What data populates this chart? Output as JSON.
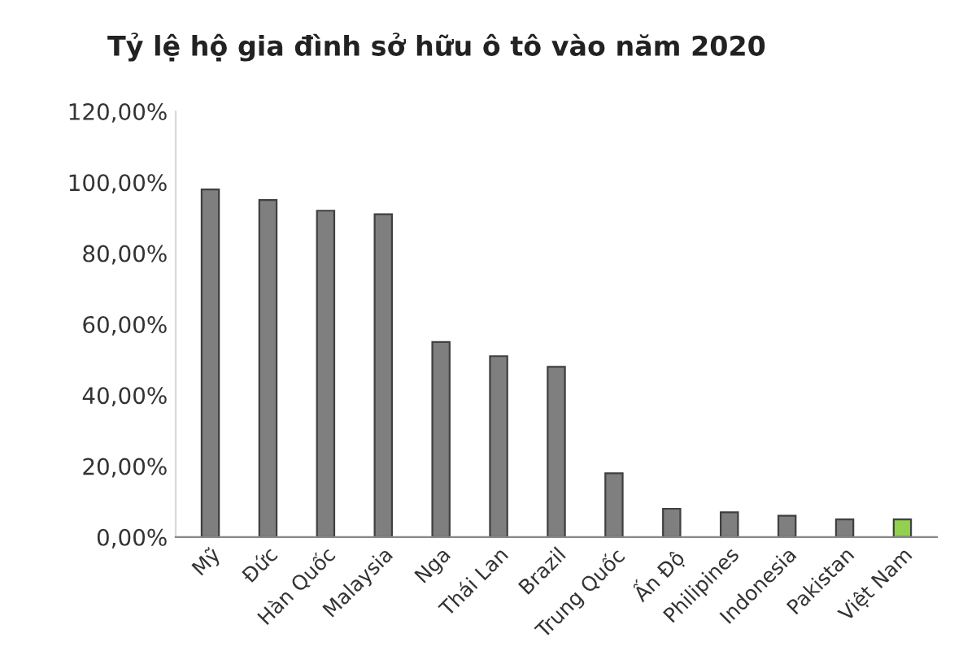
{
  "chart_data": {
    "type": "bar",
    "title": "Tỷ lệ hộ gia đình sở hữu ô tô vào năm 2020",
    "categories": [
      "Mỹ",
      "Đức",
      "Hàn Quốc",
      "Malaysia",
      "Nga",
      "Thái Lan",
      "Brazil",
      "Trung Quốc",
      "Ấn Độ",
      "Philipines",
      "Indonesia",
      "Pakistan",
      "Việt Nam"
    ],
    "values": [
      98,
      95,
      92,
      91,
      55,
      51,
      48,
      18,
      8,
      7,
      6,
      5,
      5
    ],
    "colors": [
      "#7f7f7f",
      "#7f7f7f",
      "#7f7f7f",
      "#7f7f7f",
      "#7f7f7f",
      "#7f7f7f",
      "#7f7f7f",
      "#7f7f7f",
      "#7f7f7f",
      "#7f7f7f",
      "#7f7f7f",
      "#7f7f7f",
      "#92d050"
    ],
    "ylim": [
      0,
      120
    ],
    "yticks": [
      {
        "value": 0,
        "label": "0,00%"
      },
      {
        "value": 20,
        "label": "20,00%"
      },
      {
        "value": 40,
        "label": "40,00%"
      },
      {
        "value": 60,
        "label": "60,00%"
      },
      {
        "value": 80,
        "label": "80,00%"
      },
      {
        "value": 100,
        "label": "100,00%"
      },
      {
        "value": 120,
        "label": "120,00%"
      }
    ],
    "grid": false,
    "legend": false
  }
}
